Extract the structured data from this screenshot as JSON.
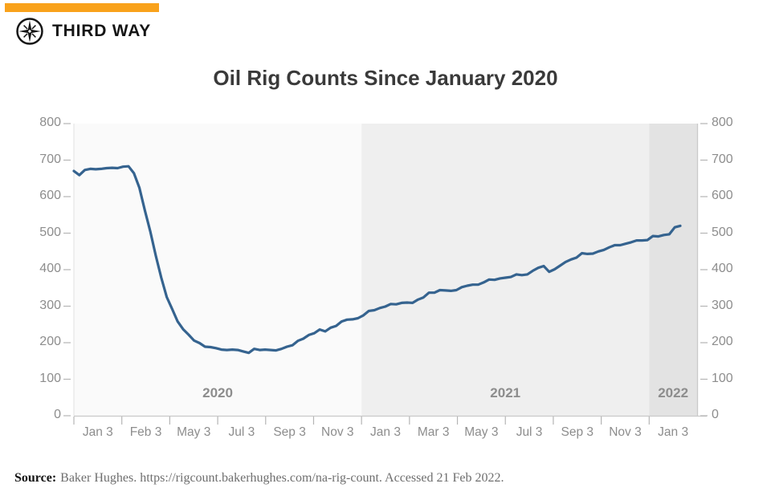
{
  "brand": {
    "name": "THIRD WAY",
    "logo_icon": "compass-star-icon",
    "accent_color": "#f9a21b"
  },
  "title": "Oil Rig Counts Since January 2020",
  "source": {
    "label": "Source:",
    "text": "Baker Hughes. https://rigcount.bakerhughes.com/na-rig-count. Accessed 21 Feb 2022."
  },
  "chart_data": {
    "type": "line",
    "title": "Oil Rig Counts Since January 2020",
    "ylim": [
      0,
      800
    ],
    "yticks": [
      0,
      100,
      200,
      300,
      400,
      500,
      600,
      700,
      800
    ],
    "yticks_sides": [
      "left",
      "right"
    ],
    "x_tick_labels": [
      "Jan 3",
      "Feb 3",
      "May 3",
      "Jul 3",
      "Sep 3",
      "Nov 3",
      "Jan 3",
      "Mar 3",
      "May 3",
      "Jul 3",
      "Sep 3",
      "Nov 3",
      "Jan 3"
    ],
    "x_band_count": 13,
    "grid": false,
    "legend": false,
    "year_bands": [
      {
        "label": "2020",
        "band_start": 0,
        "band_end": 6,
        "bg": "#fafafa"
      },
      {
        "label": "2021",
        "band_start": 6,
        "band_end": 12,
        "bg": "#efefef"
      },
      {
        "label": "2022",
        "band_start": 12,
        "band_end": 13,
        "bg": "#e3e3e3"
      }
    ],
    "axis_color": "#c9c9c9",
    "tick_color": "#b5b5b5",
    "label_color": "#8d8d8d",
    "series": [
      {
        "name": "Oil rig count",
        "color": "#35638f",
        "values": [
          670,
          659,
          673,
          676,
          675,
          676,
          678,
          679,
          678,
          682,
          683,
          664,
          624,
          562,
          504,
          438,
          378,
          325,
          292,
          258,
          237,
          222,
          206,
          199,
          189,
          188,
          185,
          181,
          180,
          181,
          180,
          176,
          172,
          183,
          180,
          181,
          180,
          179,
          183,
          189,
          193,
          205,
          211,
          221,
          226,
          236,
          231,
          241,
          246,
          258,
          263,
          264,
          267,
          275,
          287,
          289,
          295,
          299,
          306,
          305,
          309,
          310,
          309,
          318,
          324,
          337,
          337,
          344,
          343,
          342,
          344,
          352,
          356,
          359,
          359,
          365,
          373,
          372,
          376,
          378,
          380,
          387,
          385,
          387,
          397,
          405,
          410,
          394,
          401,
          411,
          421,
          428,
          433,
          445,
          443,
          444,
          450,
          454,
          461,
          467,
          467,
          471,
          475,
          480,
          480,
          481,
          492,
          491,
          495,
          497,
          516,
          520
        ]
      }
    ]
  }
}
